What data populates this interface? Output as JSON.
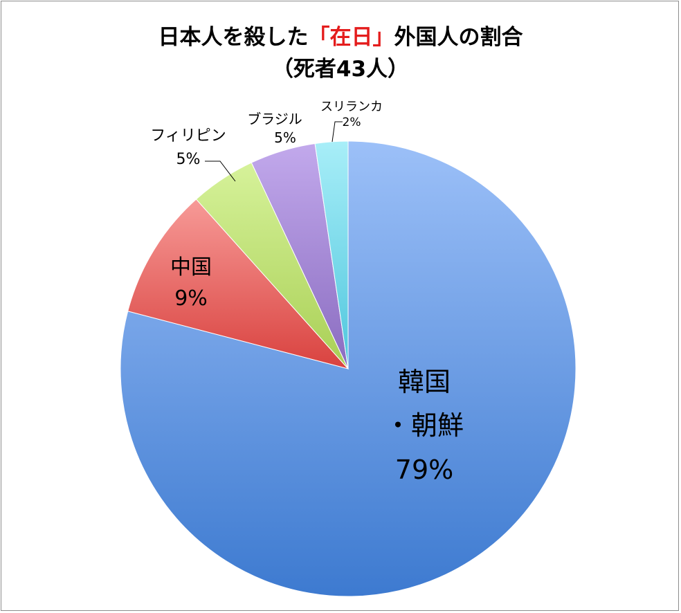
{
  "chart_data": {
    "type": "pie",
    "title_parts": [
      "日本人を殺した",
      "「在日」",
      "外国人の割合"
    ],
    "subtitle": "（死者43人）",
    "slices": [
      {
        "name": "韓国",
        "name2": "・朝鮮",
        "percent_label": "79%",
        "value": 34,
        "color": "#5b8fdd"
      },
      {
        "name": "中国",
        "percent_label": "9%",
        "value": 4,
        "color": "#e05a57"
      },
      {
        "name": "フィリピン",
        "percent_label": "5%",
        "value": 2,
        "color": "#b9d96a"
      },
      {
        "name": "ブラジル",
        "percent_label": "5%",
        "value": 2,
        "color": "#9a7fcc"
      },
      {
        "name": "スリランカ",
        "percent_label": "2%",
        "value": 1,
        "color": "#5fd2e6"
      }
    ]
  }
}
